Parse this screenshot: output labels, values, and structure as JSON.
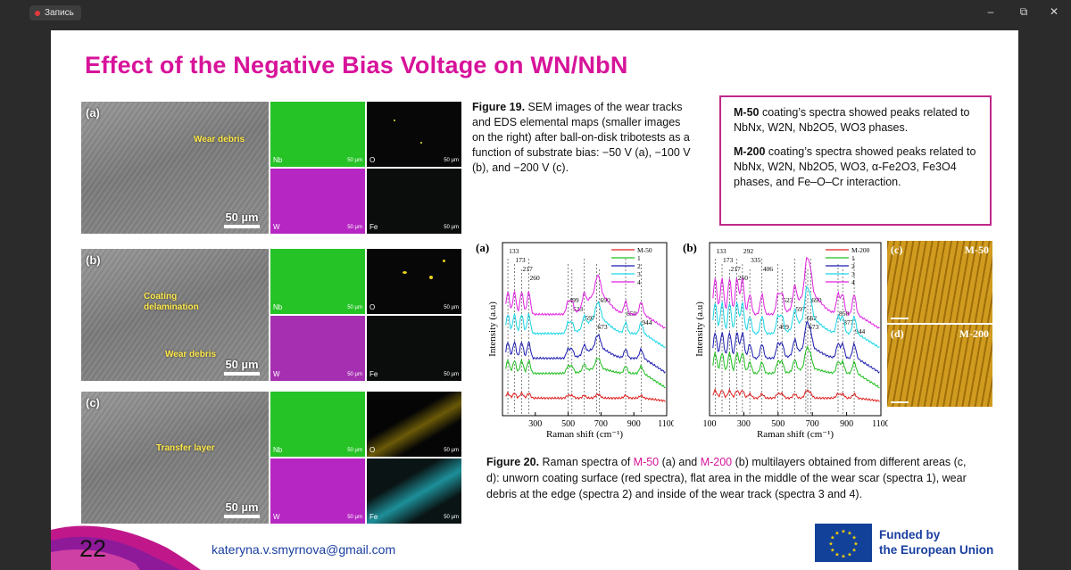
{
  "recorder": {
    "label": "Запись"
  },
  "window_controls": {
    "minimize": "–",
    "restore": "⧉",
    "close": "✕"
  },
  "slide": {
    "title": "Effect of the Negative Bias Voltage on WN/NbN",
    "sem_panels": [
      {
        "label": "(a)",
        "annotations": [
          "Wear debris"
        ],
        "scale": "50 µm"
      },
      {
        "label": "(b)",
        "annotations": [
          "Coating delamination",
          "Wear debris"
        ],
        "scale": "50 µm"
      },
      {
        "label": "(c)",
        "annotations": [
          "Transfer layer"
        ],
        "scale": "50 µm"
      }
    ],
    "map_elements": {
      "nb": "Nb",
      "w": "W",
      "o": "O",
      "fe": "Fe",
      "scale": "50 µm"
    },
    "figure19": {
      "label": "Figure 19.",
      "text": " SEM images of the wear tracks and EDS elemental maps (smaller images on the right) after ball-on-disk tribotests as a function of substrate bias: −50 V (a), −100 V (b), and −200 V (c)."
    },
    "box": {
      "m50_name": "M-50",
      "m50_text": " coating’s spectra showed peaks related to NbNx, W2N, Nb2O5, WO3 phases.",
      "m200_name": "M-200",
      "m200_text": " coating’s spectra showed peaks related to NbNx, W2N, Nb2O5, WO3, α-Fe2O3, Fe3O4 phases, and Fe–O–Cr interaction."
    },
    "figure20": {
      "label": "Figure 20.",
      "t1": " Raman spectra of ",
      "m50": "M-50",
      "t2": " (a) and ",
      "m200": "M-200",
      "t3": " (b) multilayers obtained from different areas (c, d): unworn coating surface (red spectra), flat area in the middle of the wear scar (spectra 1), wear debris at the edge (spectra 2) and inside of the wear track (spectra 3 and 4)."
    },
    "optical": [
      {
        "label": "(c)",
        "name": "M-50"
      },
      {
        "label": "(d)",
        "name": "M-200"
      }
    ],
    "page_number": "22",
    "email": "kateryna.v.smyrnova@gmail.com",
    "eu": {
      "line1": "Funded by",
      "line2": "the European Union"
    }
  },
  "chart_data": [
    {
      "type": "line",
      "panel_label": "(a)",
      "xlabel": "Raman shift (cm⁻¹)",
      "ylabel": "Intensity (a.u)",
      "xlim": [
        100,
        1100
      ],
      "xticks": [
        300,
        500,
        700,
        900,
        1100
      ],
      "peak_labels": [
        "133",
        "173",
        "217",
        "260",
        "499",
        "523",
        "597",
        "673",
        "690",
        "850",
        "944"
      ],
      "peaks": [
        133,
        173,
        217,
        260,
        499,
        523,
        597,
        673,
        690,
        850,
        944
      ],
      "legend_position": "top-right",
      "series": [
        {
          "name": "M-50",
          "color": "#e02020"
        },
        {
          "name": "1",
          "color": "#1fbf1f"
        },
        {
          "name": "2",
          "color": "#1c1cb0"
        },
        {
          "name": "3",
          "color": "#19d6e6"
        },
        {
          "name": "4",
          "color": "#e020e0"
        }
      ]
    },
    {
      "type": "line",
      "panel_label": "(b)",
      "xlabel": "Raman shift (cm⁻¹)",
      "ylabel": "Intensity (a.u)",
      "xlim": [
        100,
        1100
      ],
      "xticks": [
        100,
        300,
        500,
        700,
        900,
        1100
      ],
      "peak_labels": [
        "133",
        "173",
        "217",
        "260",
        "292",
        "335",
        "406",
        "499",
        "523",
        "597",
        "662",
        "673",
        "690",
        "850",
        "877",
        "944"
      ],
      "peaks": [
        133,
        173,
        217,
        260,
        292,
        335,
        406,
        499,
        523,
        597,
        662,
        673,
        690,
        850,
        877,
        944
      ],
      "legend_position": "top-right",
      "series": [
        {
          "name": "M-200",
          "color": "#e02020"
        },
        {
          "name": "1",
          "color": "#1fbf1f"
        },
        {
          "name": "2",
          "color": "#1c1cb0"
        },
        {
          "name": "3",
          "color": "#19d6e6"
        },
        {
          "name": "4",
          "color": "#e020e0"
        }
      ]
    }
  ]
}
